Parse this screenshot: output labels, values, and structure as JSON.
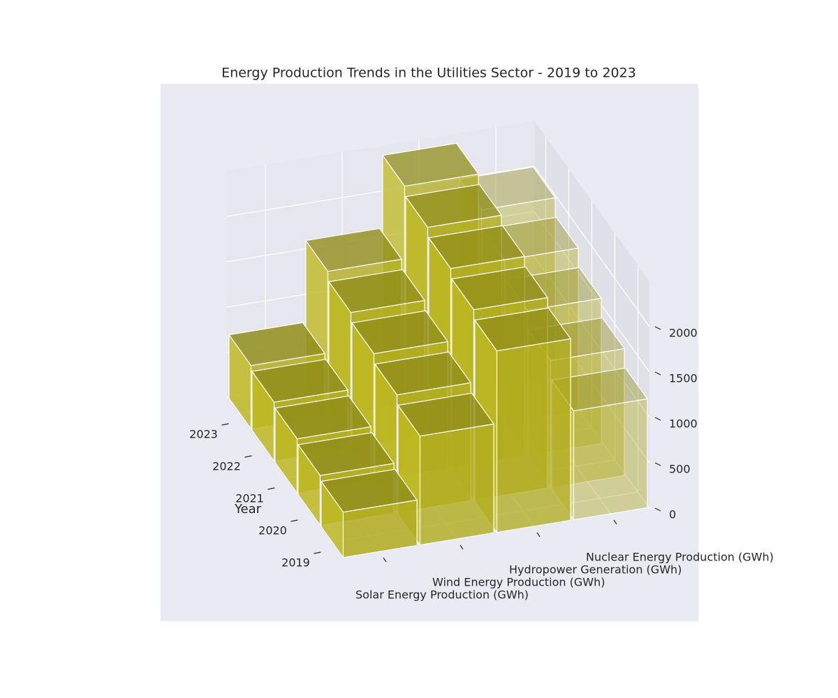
{
  "chart_data": {
    "type": "bar3d",
    "title": "Energy Production Trends in the Utilities Sector - 2019 to 2023",
    "categories": [
      "Solar Energy Production (GWh)",
      "Wind Energy Production (GWh)",
      "Hydropower Generation (GWh)",
      "Nuclear Energy Production (GWh)"
    ],
    "years": [
      "2019",
      "2020",
      "2021",
      "2022",
      "2023"
    ],
    "ylabel": "Year",
    "values": [
      [
        500,
        1200,
        2000,
        1200
      ],
      [
        550,
        1300,
        2100,
        1400
      ],
      [
        600,
        1400,
        2200,
        1600
      ],
      [
        650,
        1500,
        2300,
        1800
      ],
      [
        700,
        1600,
        2400,
        2000
      ]
    ],
    "color": "#b5b020",
    "alphas": [
      0.85,
      0.8,
      0.75,
      0.4
    ],
    "zlim": [
      0,
      2500
    ],
    "zticks": [
      0,
      500,
      1000,
      1500,
      2000
    ],
    "grid": true
  }
}
